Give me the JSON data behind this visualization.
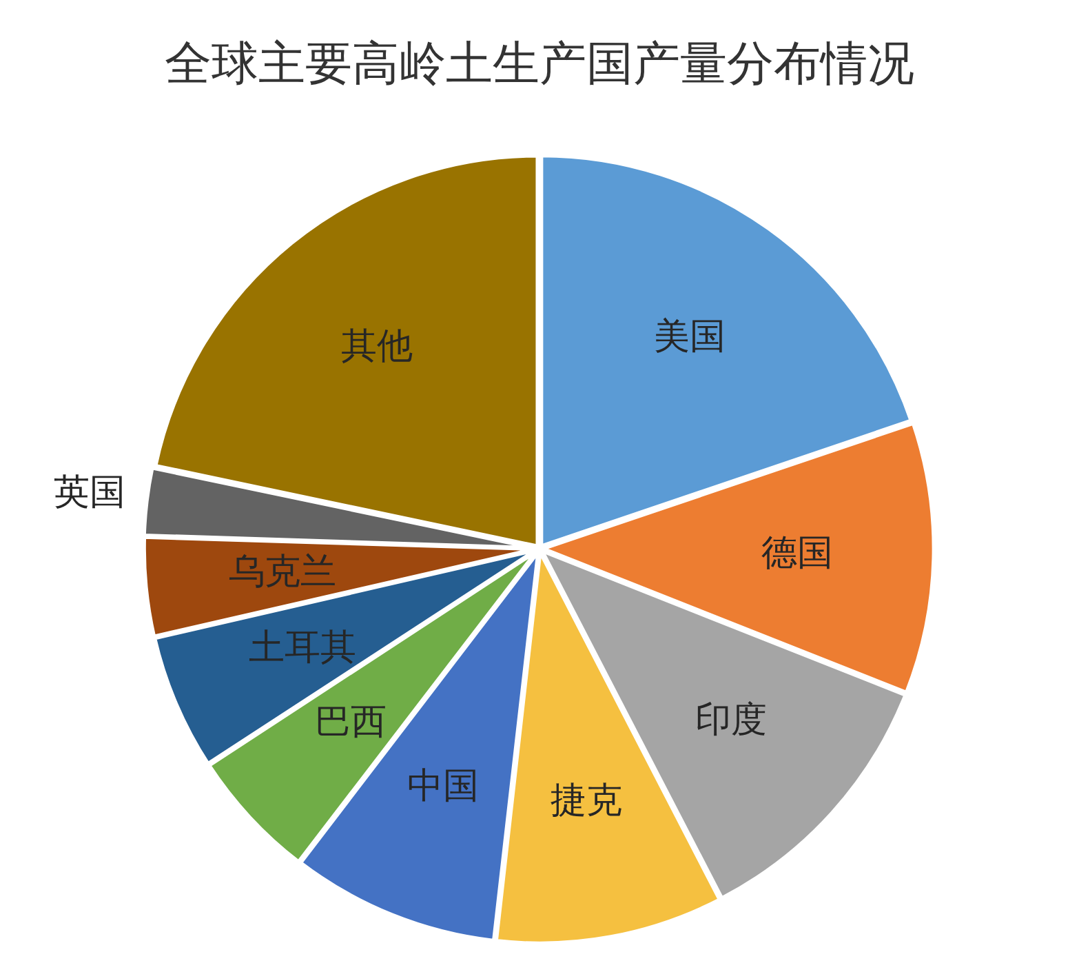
{
  "chart_data": {
    "type": "pie",
    "title": "全球主要高岭土生产国产量分布情况",
    "categories": [
      "美国",
      "德国",
      "印度",
      "捷克",
      "中国",
      "巴西",
      "土耳其",
      "乌克兰",
      "英国",
      "其他"
    ],
    "values": [
      19.8,
      11.2,
      11.4,
      9.4,
      8.6,
      5.4,
      5.6,
      4.1,
      2.8,
      21.7
    ],
    "colors": [
      "#5b9bd5",
      "#ed7d31",
      "#a5a5a5",
      "#f5c040",
      "#4472c4",
      "#70ad47",
      "#255e91",
      "#9e480e",
      "#636363",
      "#997300"
    ],
    "legend": false
  }
}
